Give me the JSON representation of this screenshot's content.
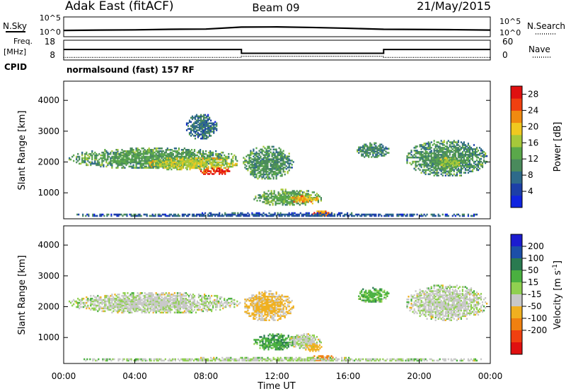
{
  "header": {
    "station": "Adak East (fitACF)",
    "beam": "Beam 09",
    "date": "21/May/2015"
  },
  "side_labels": {
    "nsky": "N.Sky",
    "freq": "Freq.",
    "freq_unit": "[MHz]",
    "cpid": "CPID",
    "nsearch": "N.Search",
    "nave": "Nave"
  },
  "cpid_text": "normalsound (fast) 157 RF",
  "colors": {
    "power": [
      "#1024e0",
      "#1c3fa8",
      "#2e6a8a",
      "#4a8a5c",
      "#5aa84a",
      "#a6c83a",
      "#f0c820",
      "#f08a10",
      "#f04010",
      "#e01010"
    ],
    "velocity": [
      "#1c1cd0",
      "#1c4fa8",
      "#2a7a50",
      "#4ab040",
      "#90d050",
      "#c8c8c8",
      "#f0b020",
      "#f08010",
      "#f04010",
      "#e01010"
    ]
  },
  "chart_data": [
    {
      "id": "nsky_nsearch",
      "type": "line",
      "x_range": [
        "00:00",
        "24:00"
      ],
      "left_axis": {
        "label": "N.Sky",
        "ticks": [
          "10^5",
          "10^0"
        ]
      },
      "right_axis": {
        "label": "N.Search",
        "ticks": [
          "10^5",
          "10^0"
        ]
      },
      "series": [
        {
          "points": [
            [
              0,
              0.28
            ],
            [
              2,
              0.3
            ],
            [
              4,
              0.31
            ],
            [
              6,
              0.34
            ],
            [
              8,
              0.35
            ],
            [
              10,
              0.45
            ],
            [
              12,
              0.46
            ],
            [
              14,
              0.43
            ],
            [
              16,
              0.39
            ],
            [
              18,
              0.34
            ],
            [
              20,
              0.33
            ],
            [
              22,
              0.32
            ],
            [
              24,
              0.3
            ]
          ]
        }
      ]
    },
    {
      "id": "freq_nave",
      "type": "line",
      "x_range": [
        "00:00",
        "24:00"
      ],
      "left_axis": {
        "label": "Freq. [MHz]",
        "ticks": [
          "18",
          "8"
        ],
        "range": [
          8,
          18
        ]
      },
      "right_axis": {
        "label": "Nave",
        "ticks": [
          "60",
          "0"
        ],
        "range": [
          0,
          60
        ]
      },
      "series": [
        {
          "points": [
            [
              0,
              12.6
            ],
            [
              10,
              12.6
            ],
            [
              10,
              10.7
            ],
            [
              18,
              10.7
            ],
            [
              18,
              12.6
            ],
            [
              24,
              12.6
            ]
          ]
        },
        {
          "points": [
            [
              0,
              6
            ],
            [
              10,
              6
            ],
            [
              10,
              10
            ],
            [
              18,
              10
            ],
            [
              18,
              6
            ],
            [
              24,
              6
            ]
          ],
          "axis": "right"
        }
      ]
    },
    {
      "id": "power",
      "type": "heatmap",
      "ylabel": "Slant Range [km]",
      "yticks": [
        1000,
        2000,
        3000,
        4000
      ],
      "ylim": [
        180,
        4600
      ],
      "colorbar": {
        "label": "Power [dB]",
        "ticks": [
          4,
          8,
          12,
          16,
          20,
          24,
          28
        ],
        "range": [
          0,
          30
        ]
      },
      "blobs": [
        {
          "t0": 0.2,
          "t1": 9.9,
          "r0": 1750,
          "r1": 2450,
          "v": 12
        },
        {
          "t0": 4.5,
          "t1": 9.8,
          "r0": 1700,
          "r1": 2150,
          "v": 17
        },
        {
          "t0": 7.6,
          "t1": 9.4,
          "r0": 1550,
          "r1": 1800,
          "v": 27
        },
        {
          "t0": 6.8,
          "t1": 8.6,
          "r0": 2700,
          "r1": 3550,
          "v": 8
        },
        {
          "t0": 10.0,
          "t1": 12.9,
          "r0": 1400,
          "r1": 2500,
          "v": 11
        },
        {
          "t0": 10.6,
          "t1": 14.6,
          "r0": 550,
          "r1": 1100,
          "v": 13
        },
        {
          "t0": 12.6,
          "t1": 14.4,
          "r0": 650,
          "r1": 900,
          "v": 21
        },
        {
          "t0": 13.9,
          "t1": 15.2,
          "r0": 200,
          "r1": 420,
          "v": 23
        },
        {
          "t0": 16.4,
          "t1": 18.3,
          "r0": 2100,
          "r1": 2600,
          "v": 10
        },
        {
          "t0": 19.2,
          "t1": 23.8,
          "r0": 1500,
          "r1": 2700,
          "v": 11
        },
        {
          "t0": 21.0,
          "t1": 22.3,
          "r0": 1750,
          "r1": 2150,
          "v": 15
        },
        {
          "t0": 0.0,
          "t1": 24.0,
          "r0": 190,
          "r1": 330,
          "v": 6
        }
      ]
    },
    {
      "id": "velocity",
      "type": "heatmap",
      "xlabel": "Time UT",
      "ylabel": "Slant Range [km]",
      "xticks": [
        "00:00",
        "04:00",
        "08:00",
        "12:00",
        "16:00",
        "20:00",
        "00:00"
      ],
      "yticks": [
        1000,
        2000,
        3000,
        4000
      ],
      "ylim": [
        180,
        4600
      ],
      "colorbar": {
        "label": "Velocity [m s^-1]",
        "ticks": [
          200,
          100,
          50,
          15,
          -15,
          -50,
          -100,
          -200
        ]
      },
      "blobs": [
        {
          "t0": 0.2,
          "t1": 9.9,
          "r0": 1750,
          "r1": 2450,
          "v": 0
        },
        {
          "t0": 10.0,
          "t1": 12.9,
          "r0": 1500,
          "r1": 2500,
          "v": -20
        },
        {
          "t0": 10.6,
          "t1": 13.2,
          "r0": 550,
          "r1": 1100,
          "v": 25
        },
        {
          "t0": 12.6,
          "t1": 14.5,
          "r0": 600,
          "r1": 1100,
          "v": 0
        },
        {
          "t0": 13.5,
          "t1": 14.5,
          "r0": 500,
          "r1": 800,
          "v": -30
        },
        {
          "t0": 13.9,
          "t1": 15.2,
          "r0": 200,
          "r1": 420,
          "v": -60
        },
        {
          "t0": 16.4,
          "t1": 18.3,
          "r0": 2100,
          "r1": 2600,
          "v": 20
        },
        {
          "t0": 19.2,
          "t1": 23.8,
          "r0": 1500,
          "r1": 2700,
          "v": 0
        },
        {
          "t0": 0.0,
          "t1": 24.0,
          "r0": 190,
          "r1": 330,
          "v": 5
        }
      ]
    }
  ]
}
